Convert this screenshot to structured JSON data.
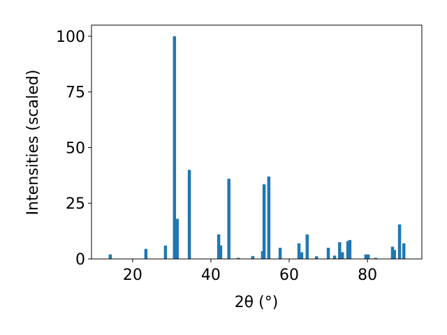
{
  "chart_data": {
    "type": "bar",
    "xlabel": "2θ (°)",
    "ylabel": "Intensities (scaled)",
    "x": [
      14.3,
      23.4,
      28.4,
      30.7,
      31.4,
      34.5,
      42.0,
      42.5,
      44.6,
      47.0,
      50.7,
      53.2,
      53.6,
      54.8,
      57.7,
      62.5,
      63.2,
      64.6,
      67.0,
      70.0,
      71.6,
      72.9,
      73.6,
      75.0,
      75.5,
      79.6,
      80.2,
      82.1,
      86.4,
      86.9,
      88.2,
      89.3
    ],
    "values": [
      2,
      4.5,
      6,
      100,
      18,
      40,
      11,
      6,
      36,
      0.5,
      1.3,
      3.5,
      33.5,
      37,
      5,
      7,
      3,
      11,
      1.2,
      5,
      1.5,
      7.5,
      3,
      8,
      8.5,
      2,
      2,
      0.5,
      5.5,
      4,
      15.5,
      7
    ],
    "color": "#1f77b4",
    "xlim": [
      9.5,
      93.9
    ],
    "ylim": [
      0,
      105
    ],
    "xticks": [
      20,
      40,
      60,
      80
    ],
    "yticks": [
      0,
      25,
      50,
      75,
      100
    ]
  }
}
